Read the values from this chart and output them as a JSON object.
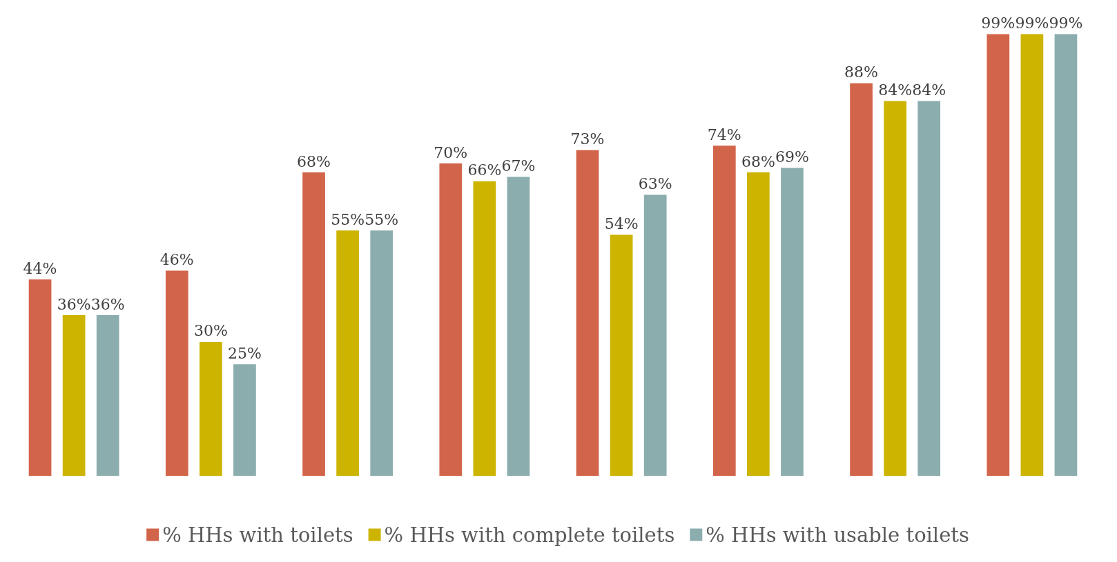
{
  "chart_data": {
    "type": "bar",
    "categories": [
      null,
      null,
      null,
      null,
      null,
      null,
      null,
      null
    ],
    "series": [
      {
        "name": "% HHs with toilets",
        "color": "#d2644a",
        "values": [
          44,
          46,
          68,
          70,
          73,
          74,
          88,
          99
        ],
        "value_labels": [
          "44%",
          "46%",
          "68%",
          "70%",
          "73%",
          "74%",
          "88%",
          "99%"
        ]
      },
      {
        "name": "% HHs with complete toilets",
        "color": "#cdb400",
        "values": [
          36,
          30,
          55,
          66,
          54,
          68,
          84,
          99
        ],
        "value_labels": [
          "36%",
          "30%",
          "55%",
          "66%",
          "54%",
          "68%",
          "84%",
          "99%"
        ]
      },
      {
        "name": "% HHs with usable toilets",
        "color": "#8cadae",
        "values": [
          36,
          25,
          55,
          67,
          63,
          69,
          84,
          99
        ],
        "value_labels": [
          "36%",
          "25%",
          "55%",
          "67%",
          "63%",
          "69%",
          "84%",
          "99%"
        ]
      }
    ],
    "legend": "bottom"
  }
}
